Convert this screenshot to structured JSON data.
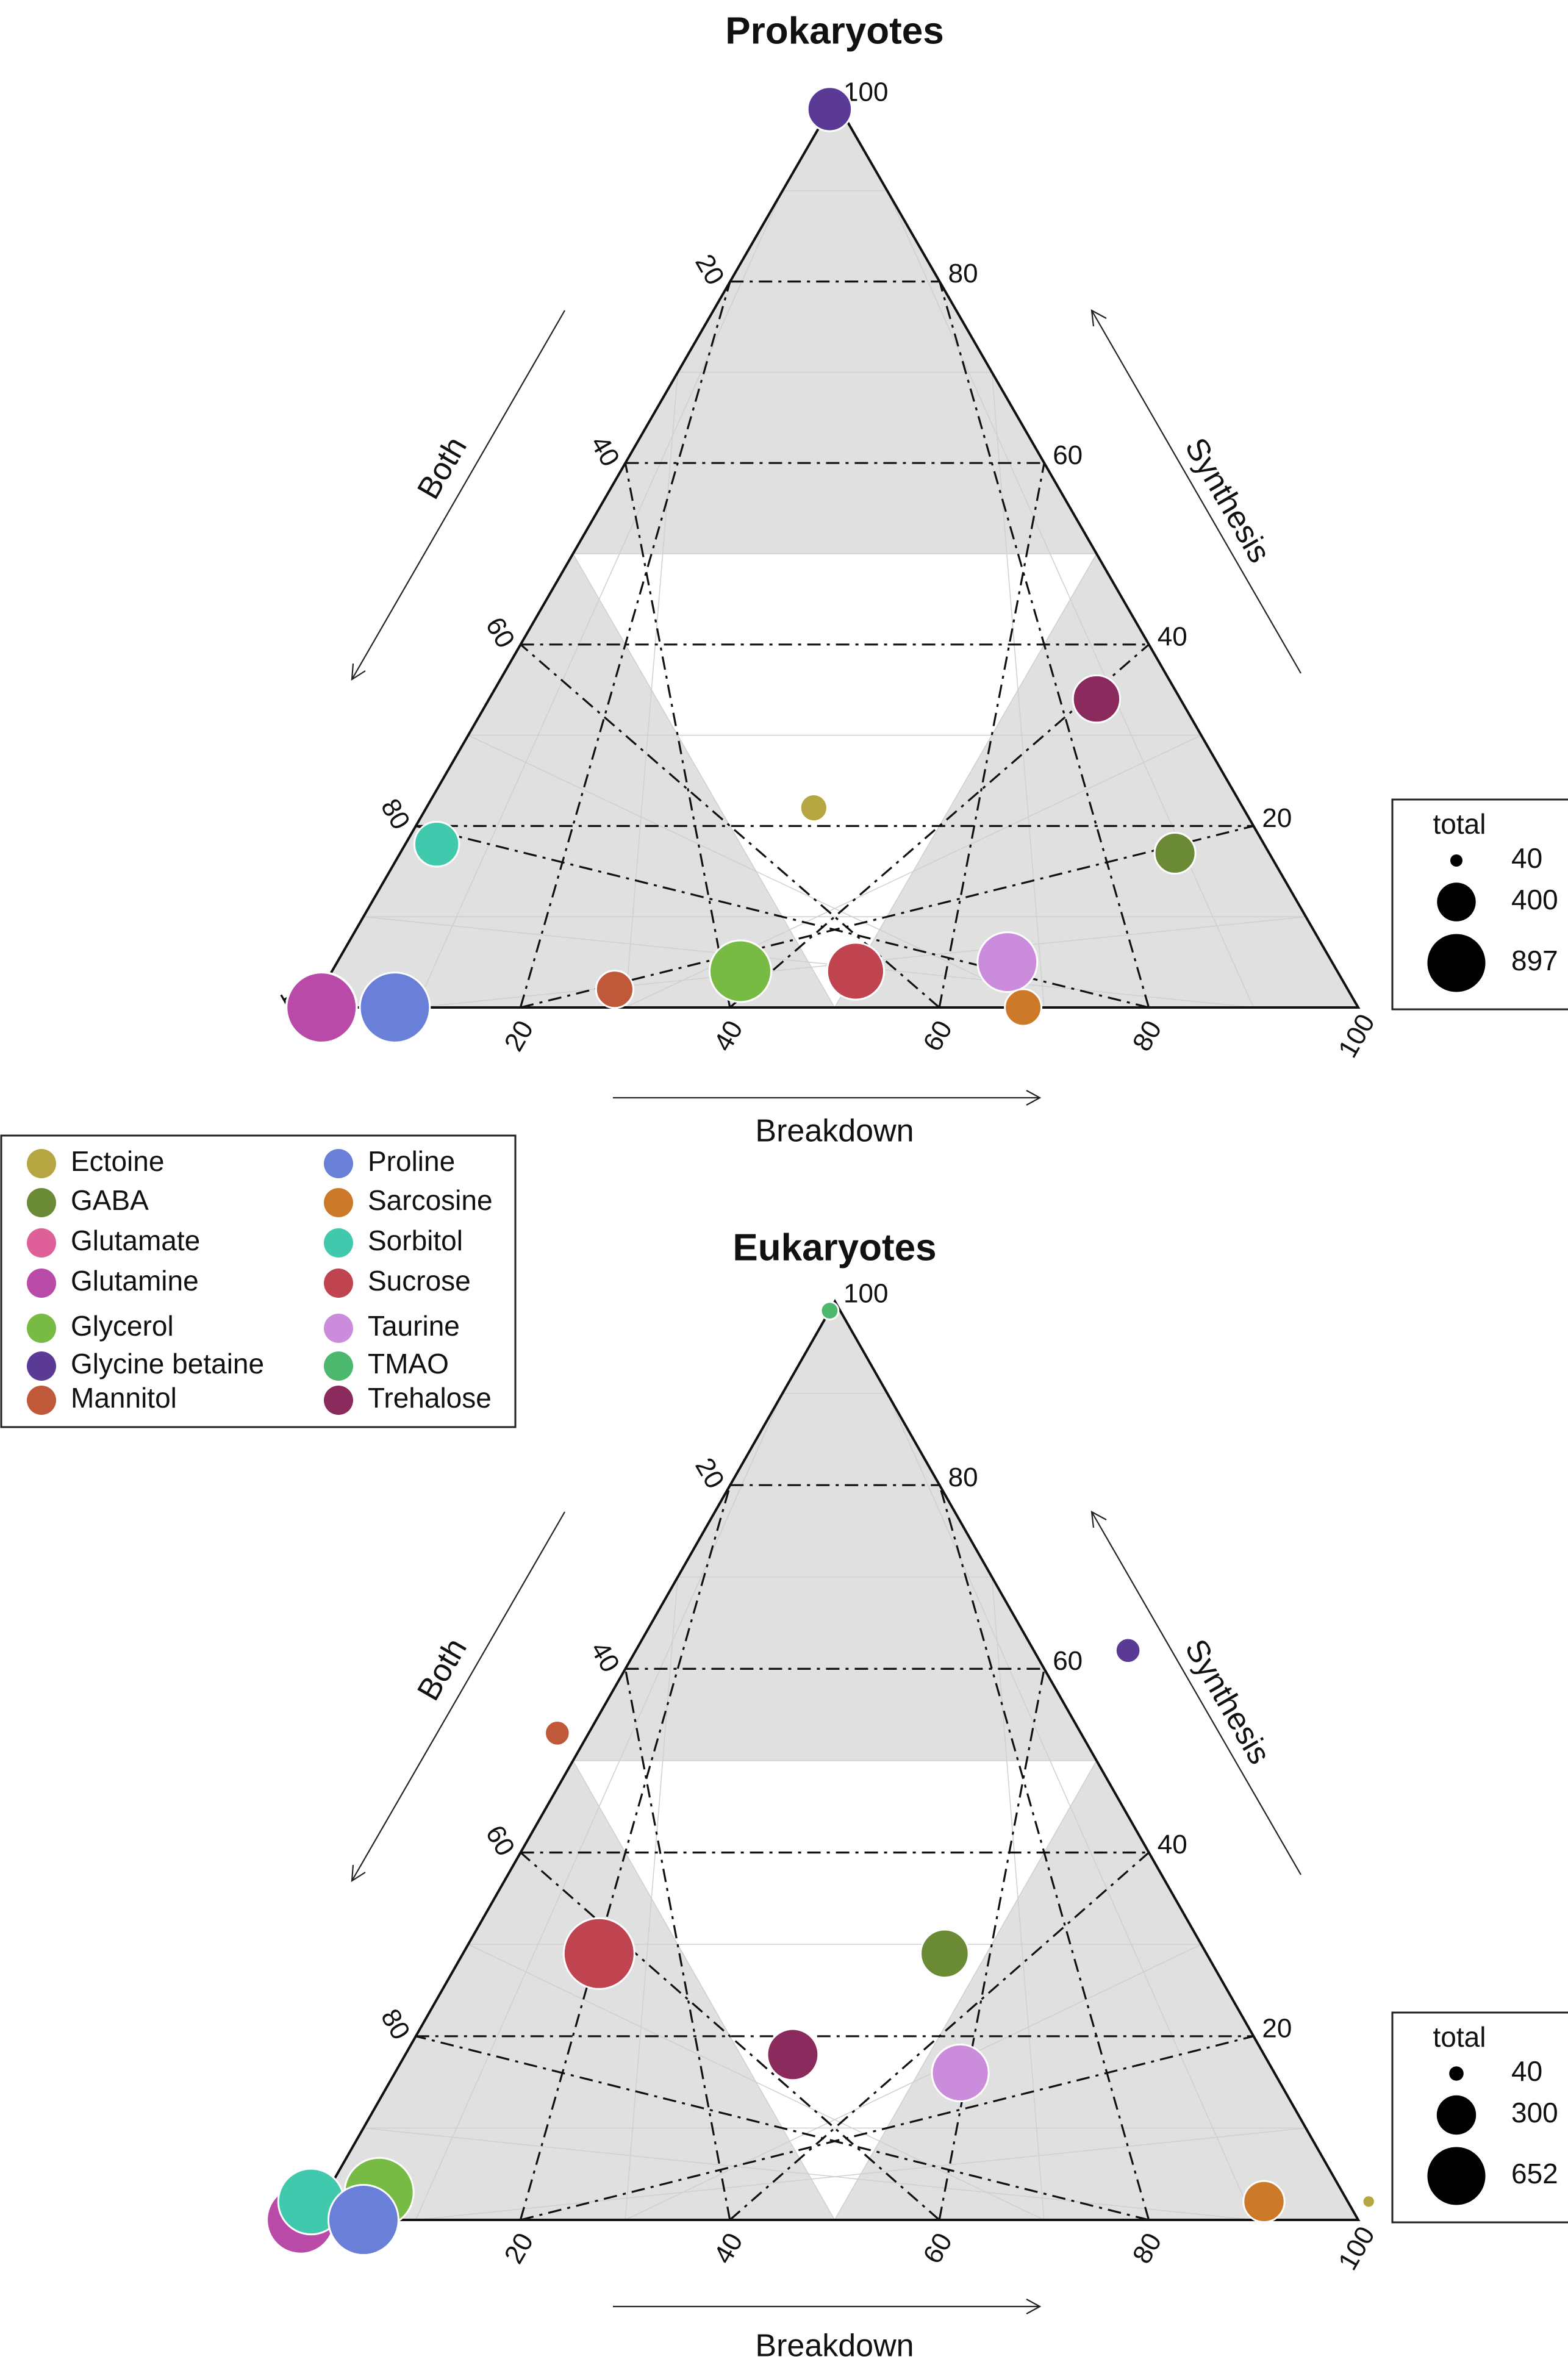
{
  "axis_ticks": {
    "breakdown": [
      "20",
      "40",
      "60",
      "80",
      "100"
    ],
    "synthesis": [
      "20",
      "40",
      "60",
      "80",
      "100"
    ],
    "both": [
      "20",
      "40",
      "60",
      "80",
      "1"
    ]
  },
  "axis_labels": {
    "breakdown": "Breakdown",
    "synthesis": "Synthesis",
    "both": "Both"
  },
  "species_legend": [
    {
      "name": "Ectoine",
      "color": "#b5a642"
    },
    {
      "name": "GABA",
      "color": "#6b8a35"
    },
    {
      "name": "Glutamate",
      "color": "#df5f98"
    },
    {
      "name": "Glutamine",
      "color": "#b94aa8"
    },
    {
      "name": "Glycerol",
      "color": "#78bb44"
    },
    {
      "name": "Glycine betaine",
      "color": "#5a3a95"
    },
    {
      "name": "Mannitol",
      "color": "#c0583a"
    },
    {
      "name": "Proline",
      "color": "#6a7fd8"
    },
    {
      "name": "Sarcosine",
      "color": "#cc7a2a"
    },
    {
      "name": "Sorbitol",
      "color": "#40c9ad"
    },
    {
      "name": "Sucrose",
      "color": "#c04350"
    },
    {
      "name": "Taurine",
      "color": "#cc8cdc"
    },
    {
      "name": "TMAO",
      "color": "#4cb86e"
    },
    {
      "name": "Trehalose",
      "color": "#8b2a5c"
    }
  ],
  "chart_data": [
    {
      "type": "scatter",
      "subtype": "ternary-bubble",
      "title": "Prokaryotes",
      "axes": [
        "Breakdown",
        "Synthesis",
        "Both"
      ],
      "size_legend": {
        "title": "total",
        "values": [
          40,
          400,
          897
        ],
        "labels": [
          "40",
          "400",
          "897"
        ]
      },
      "points": [
        {
          "name": "Glycine betaine",
          "breakdown": 0,
          "synthesis": 99,
          "both": 1,
          "total": 350
        },
        {
          "name": "Trehalose",
          "breakdown": 58,
          "synthesis": 34,
          "both": 8,
          "total": 400
        },
        {
          "name": "Ectoine",
          "breakdown": 37,
          "synthesis": 22,
          "both": 41,
          "total": 130
        },
        {
          "name": "GABA",
          "breakdown": 74,
          "synthesis": 17,
          "both": 9,
          "total": 300
        },
        {
          "name": "Sorbitol",
          "breakdown": 3,
          "synthesis": 18,
          "both": 79,
          "total": 360
        },
        {
          "name": "Glutamate",
          "breakdown": 1,
          "synthesis": 0,
          "both": 99,
          "total": 897
        },
        {
          "name": "Glutamine",
          "breakdown": 1,
          "synthesis": 0,
          "both": 99,
          "total": 880
        },
        {
          "name": "Proline",
          "breakdown": 8,
          "synthesis": 0,
          "both": 92,
          "total": 880
        },
        {
          "name": "Mannitol",
          "breakdown": 28,
          "synthesis": 2,
          "both": 70,
          "total": 250
        },
        {
          "name": "Glycerol",
          "breakdown": 39,
          "synthesis": 4,
          "both": 57,
          "total": 680
        },
        {
          "name": "Sucrose",
          "breakdown": 50,
          "synthesis": 4,
          "both": 46,
          "total": 580
        },
        {
          "name": "Taurine",
          "breakdown": 64,
          "synthesis": 5,
          "both": 31,
          "total": 640
        },
        {
          "name": "Sarcosine",
          "breakdown": 68,
          "synthesis": 0,
          "both": 32,
          "total": 240
        }
      ]
    },
    {
      "type": "scatter",
      "subtype": "ternary-bubble",
      "title": "Eukaryotes",
      "axes": [
        "Breakdown",
        "Synthesis",
        "Both"
      ],
      "size_legend": {
        "title": "total",
        "values": [
          40,
          300,
          652
        ],
        "labels": [
          "40",
          "300",
          "652"
        ]
      },
      "points": [
        {
          "name": "TMAO",
          "breakdown": 0,
          "synthesis": 99,
          "both": 1,
          "total": 40
        },
        {
          "name": "Glycine betaine",
          "breakdown": 47,
          "synthesis": 62,
          "both": -9,
          "total": 80
        },
        {
          "name": "Mannitol",
          "breakdown": -3,
          "synthesis": 53,
          "both": 50,
          "total": 80
        },
        {
          "name": "GABA",
          "breakdown": 46,
          "synthesis": 29,
          "both": 25,
          "total": 300
        },
        {
          "name": "Sucrose",
          "breakdown": 13,
          "synthesis": 29,
          "both": 58,
          "total": 652
        },
        {
          "name": "Trehalose",
          "breakdown": 37,
          "synthesis": 18,
          "both": 45,
          "total": 340
        },
        {
          "name": "Taurine",
          "breakdown": 54,
          "synthesis": 16,
          "both": 30,
          "total": 420
        },
        {
          "name": "Sarcosine",
          "breakdown": 90,
          "synthesis": 2,
          "both": 8,
          "total": 220
        },
        {
          "name": "Ectoine",
          "breakdown": 100,
          "synthesis": 2,
          "both": -2,
          "total": 20
        },
        {
          "name": "Glutamate",
          "breakdown": -1,
          "synthesis": 0,
          "both": 101,
          "total": 600
        },
        {
          "name": "Glutamine",
          "breakdown": -1,
          "synthesis": 0,
          "both": 101,
          "total": 590
        },
        {
          "name": "Glycerol",
          "breakdown": 5,
          "synthesis": 3,
          "both": 92,
          "total": 620
        },
        {
          "name": "Sorbitol",
          "breakdown": -1,
          "synthesis": 2,
          "both": 99,
          "total": 560
        },
        {
          "name": "Proline",
          "breakdown": 5,
          "synthesis": 0,
          "both": 95,
          "total": 640
        }
      ]
    }
  ]
}
